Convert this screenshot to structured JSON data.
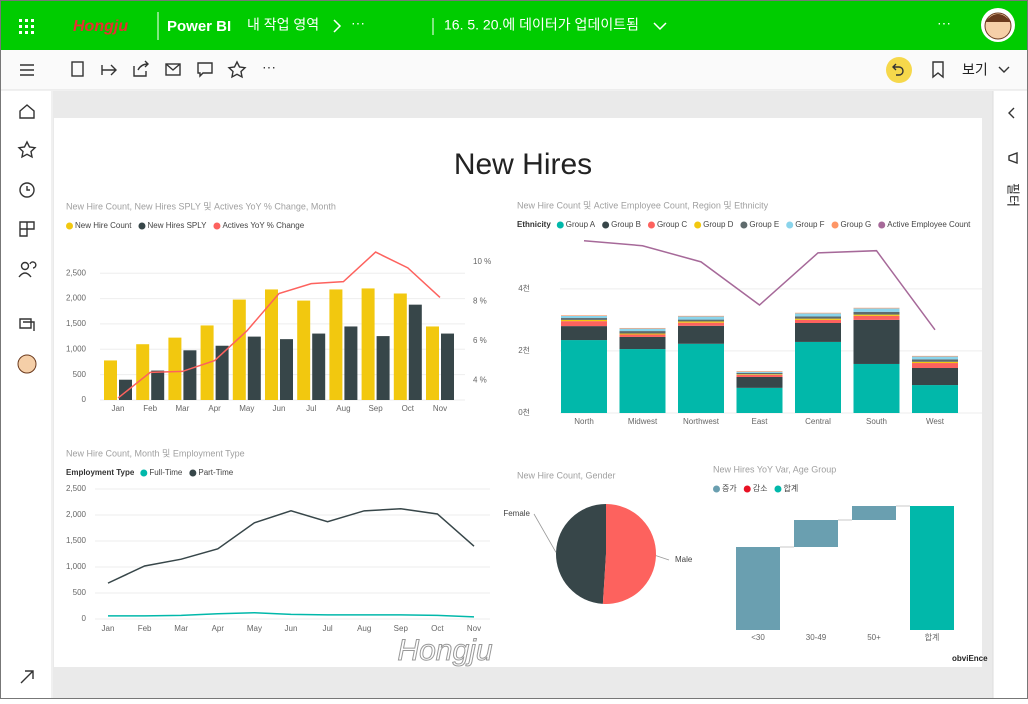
{
  "header": {
    "logo": "Hongju",
    "app": "Power BI",
    "workspace": "내 작업 영역",
    "more": "···",
    "updated": "16. 5. 20.에 데이터가 업데이트됨",
    "more_right": "···"
  },
  "toolbar": {
    "more": "···",
    "view": "보기"
  },
  "filters_pane": {
    "label": "필터"
  },
  "report": {
    "title": "New Hires",
    "footer": "obviEnce",
    "watermark": "Hongju"
  },
  "chart_data": [
    {
      "type": "combo",
      "title": "New Hire Count, New Hires SPLY 및 Actives YoY % Change, Month",
      "categories": [
        "Jan",
        "Feb",
        "Mar",
        "Apr",
        "May",
        "Jun",
        "Jul",
        "Aug",
        "Sep",
        "Oct",
        "Nov"
      ],
      "series": [
        {
          "name": "New Hire Count",
          "color": "#f2c80f",
          "type": "bar",
          "values": [
            780,
            1100,
            1230,
            1470,
            1980,
            2180,
            1960,
            2180,
            2200,
            2100,
            1450
          ]
        },
        {
          "name": "New Hires SPLY",
          "color": "#374649",
          "type": "bar",
          "values": [
            400,
            580,
            980,
            1070,
            1250,
            1200,
            1310,
            1450,
            1260,
            1880,
            1310
          ]
        },
        {
          "name": "Actives YoY % Change",
          "color": "#fd625e",
          "type": "line",
          "axis": "y2",
          "values": [
            3.1,
            4.4,
            4.45,
            5.0,
            6.5,
            8.4,
            8.9,
            9.0,
            10.5,
            9.7,
            8.2
          ]
        }
      ],
      "ylim": [
        0,
        2800
      ],
      "yticks": [
        0,
        500,
        {
          "value": 1000,
          "label": "1,000"
        },
        {
          "value": 1500,
          "label": "1,500"
        },
        {
          "value": 2000,
          "label": "2,000"
        },
        {
          "value": 2500,
          "label": "2,500"
        }
      ],
      "y2lim": [
        3,
        10.2
      ],
      "y2ticks": [
        {
          "value": 4,
          "label": "4 %"
        },
        {
          "value": 6,
          "label": "6 %"
        },
        {
          "value": 8,
          "label": "8 %"
        },
        {
          "value": 10,
          "label": "10 %"
        }
      ],
      "grid": true
    },
    {
      "type": "stacked_combo",
      "title": "New Hire Count 및 Active Employee Count, Region 및 Ethnicity",
      "legend_title": "Ethnicity",
      "categories": [
        "North",
        "Midwest",
        "Northwest",
        "East",
        "Central",
        "South",
        "West"
      ],
      "series": [
        {
          "name": "Group A",
          "color": "#01b8aa",
          "type": "bar",
          "values": [
            2350,
            2060,
            2230,
            810,
            2290,
            1580,
            900
          ]
        },
        {
          "name": "Group B",
          "color": "#374649",
          "type": "bar",
          "values": [
            450,
            390,
            580,
            350,
            610,
            1420,
            550
          ]
        },
        {
          "name": "Group C",
          "color": "#fd625e",
          "type": "bar",
          "values": [
            160,
            80,
            100,
            70,
            100,
            130,
            160
          ]
        },
        {
          "name": "Group D",
          "color": "#f2c80f",
          "type": "bar",
          "values": [
            40,
            30,
            40,
            20,
            40,
            40,
            40
          ]
        },
        {
          "name": "Group E",
          "color": "#5f6b6d",
          "type": "bar",
          "values": [
            60,
            80,
            60,
            40,
            70,
            90,
            80
          ]
        },
        {
          "name": "Group F",
          "color": "#8ad4eb",
          "type": "bar",
          "values": [
            70,
            80,
            100,
            40,
            100,
            110,
            90
          ]
        },
        {
          "name": "Group G",
          "color": "#fe9666",
          "type": "bar",
          "values": [
            20,
            20,
            20,
            20,
            20,
            20,
            20
          ]
        },
        {
          "name": "Active Employee Count",
          "color": "#a66999",
          "type": "line",
          "values": [
            5550,
            5390,
            4870,
            3480,
            5160,
            5230,
            2680
          ]
        }
      ],
      "ylim": [
        0,
        5800
      ],
      "yticks": [
        {
          "value": 0,
          "label": "0천"
        },
        {
          "value": 2000,
          "label": "2천"
        },
        {
          "value": 4000,
          "label": "4천"
        }
      ],
      "grid": true
    },
    {
      "type": "line",
      "title": "New Hire Count, Month 및 Employment Type",
      "legend_title": "Employment Type",
      "categories": [
        "Jan",
        "Feb",
        "Mar",
        "Apr",
        "May",
        "Jun",
        "Jul",
        "Aug",
        "Sep",
        "Oct",
        "Nov"
      ],
      "series": [
        {
          "name": "Full-Time",
          "color": "#01b8aa",
          "values": [
            60,
            60,
            70,
            100,
            120,
            90,
            80,
            80,
            80,
            70,
            40
          ]
        },
        {
          "name": "Part-Time",
          "color": "#374649",
          "values": [
            690,
            1020,
            1150,
            1350,
            1850,
            2080,
            1870,
            2080,
            2120,
            2020,
            1400
          ]
        }
      ],
      "ylim": [
        0,
        2500
      ],
      "yticks": [
        0,
        500,
        {
          "value": 1000,
          "label": "1,000"
        },
        {
          "value": 1500,
          "label": "1,500"
        },
        {
          "value": 2000,
          "label": "2,000"
        },
        {
          "value": 2500,
          "label": "2,500"
        }
      ],
      "grid": true
    },
    {
      "type": "pie",
      "title": "New Hire Count, Gender",
      "categories": [
        "Female",
        "Male"
      ],
      "values": [
        49,
        51
      ],
      "colors": [
        "#374649",
        "#fd625e"
      ]
    },
    {
      "type": "waterfall",
      "title": "New Hires YoY Var, Age Group",
      "legend": [
        {
          "name": "증가",
          "color": "#6a9fb0"
        },
        {
          "name": "감소",
          "color": "#e81123"
        },
        {
          "name": "합계",
          "color": "#01b8aa"
        }
      ],
      "categories": [
        "<30",
        "30-49",
        "50+",
        "합계"
      ],
      "values": [
        83,
        27,
        14,
        124
      ],
      "bar_kind": [
        0,
        0,
        0,
        2
      ],
      "ylim": [
        0,
        130
      ]
    }
  ]
}
